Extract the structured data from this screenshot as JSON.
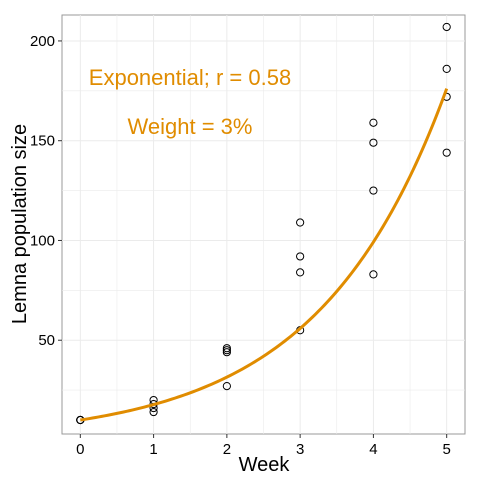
{
  "chart_data": {
    "type": "scatter",
    "xlabel": "Week",
    "ylabel": "Lemna population size",
    "xlim": [
      -0.25,
      5.25
    ],
    "ylim": [
      3,
      213
    ],
    "x_ticks": [
      0,
      1,
      2,
      3,
      4,
      5
    ],
    "y_ticks": [
      50,
      100,
      150,
      200
    ],
    "grid": true,
    "points": [
      {
        "x": 0,
        "y": 10
      },
      {
        "x": 0,
        "y": 10
      },
      {
        "x": 0,
        "y": 10
      },
      {
        "x": 0,
        "y": 10
      },
      {
        "x": 1,
        "y": 20
      },
      {
        "x": 1,
        "y": 18
      },
      {
        "x": 1,
        "y": 16
      },
      {
        "x": 1,
        "y": 14
      },
      {
        "x": 2,
        "y": 46
      },
      {
        "x": 2,
        "y": 45
      },
      {
        "x": 2,
        "y": 44
      },
      {
        "x": 2,
        "y": 27
      },
      {
        "x": 3,
        "y": 109
      },
      {
        "x": 3,
        "y": 92
      },
      {
        "x": 3,
        "y": 84
      },
      {
        "x": 3,
        "y": 55
      },
      {
        "x": 4,
        "y": 159
      },
      {
        "x": 4,
        "y": 149
      },
      {
        "x": 4,
        "y": 125
      },
      {
        "x": 4,
        "y": 83
      },
      {
        "x": 5,
        "y": 207
      },
      {
        "x": 5,
        "y": 186
      },
      {
        "x": 5,
        "y": 172
      },
      {
        "x": 5,
        "y": 144
      }
    ],
    "fit": {
      "model": "exponential",
      "a": 10,
      "b": 0.5737,
      "x_range": [
        0,
        5
      ],
      "color": "#e08c00"
    },
    "annotations": [
      "Exponential; r = 0.58",
      "Weight = 3%"
    ],
    "colors": {
      "points": "#000000",
      "fit": "#e08c00",
      "annotation": "#e08c00",
      "grid": "#ebebeb",
      "panel_border": "#999999"
    }
  }
}
